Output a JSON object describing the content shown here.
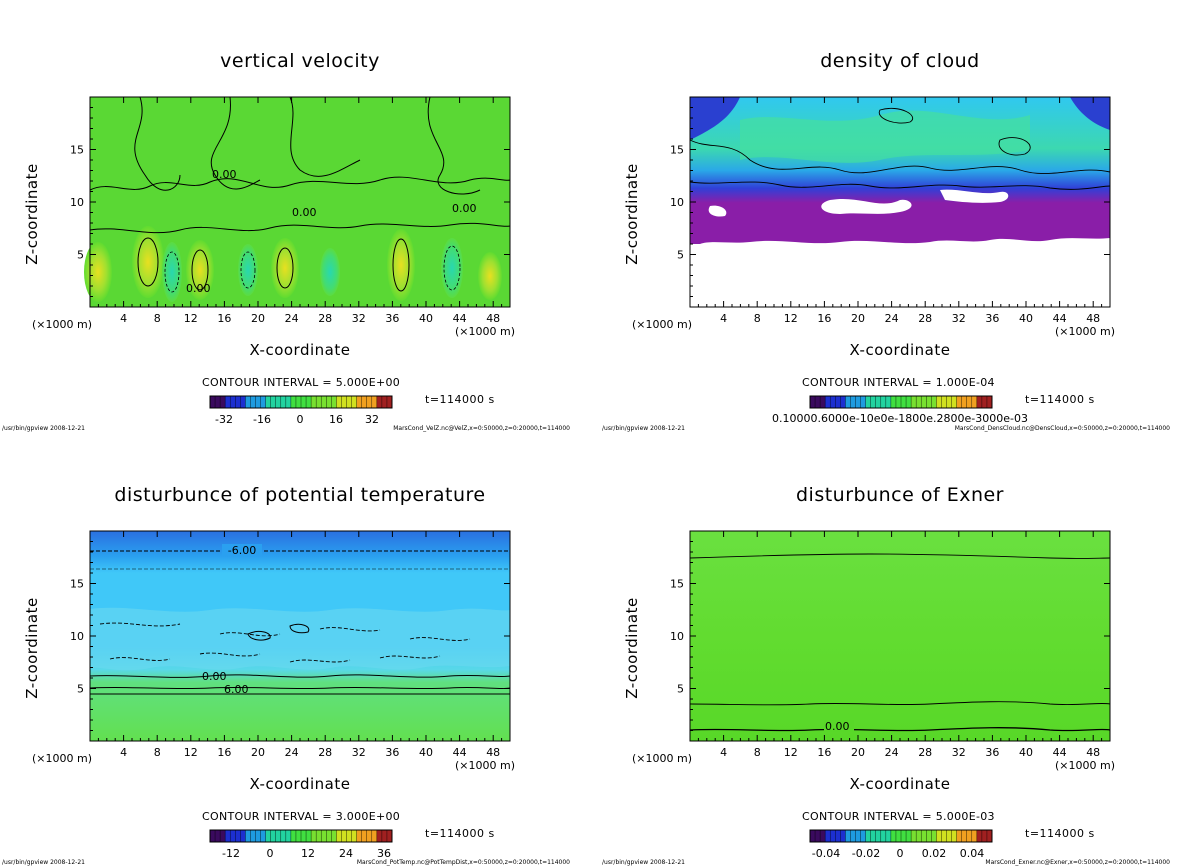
{
  "shared": {
    "ylabel": "Z-coordinate",
    "xlabel": "X-coordinate",
    "x_unit_left": "(×1000 m)",
    "x_unit_right": "(×1000 m)",
    "time": "t=114000 s",
    "path": "/usr/bin/gpview  2008-12-21"
  },
  "chart_data": [
    {
      "type": "heatmap",
      "title": "vertical velocity",
      "xlabel": "X-coordinate",
      "ylabel": "Z-coordinate",
      "xlim": [
        0,
        50
      ],
      "ylim": [
        0,
        20
      ],
      "x_ticks": [
        4,
        8,
        12,
        16,
        20,
        24,
        28,
        32,
        36,
        40,
        44,
        48
      ],
      "y_ticks": [
        5,
        10,
        15
      ],
      "contour_interval": "CONTOUR INTERVAL = 5.000E+00",
      "colorbar_ticks": [
        "-32",
        "-16",
        "0",
        "16",
        "32"
      ],
      "contour_labels": [
        "0.00"
      ],
      "file": "MarsCond_VelZ.nc@VelZ,x=0:50000,z=0:20000,t=114000",
      "palette": [
        "#3a0a5e",
        "#1c2fd0",
        "#1e9be0",
        "#22d3a0",
        "#40e040",
        "#78e030",
        "#d0e020",
        "#f0a020",
        "#a02020"
      ]
    },
    {
      "type": "heatmap",
      "title": "density of cloud",
      "xlabel": "X-coordinate",
      "ylabel": "Z-coordinate",
      "xlim": [
        0,
        50
      ],
      "ylim": [
        0,
        20
      ],
      "x_ticks": [
        4,
        8,
        12,
        16,
        20,
        24,
        28,
        32,
        36,
        40,
        44,
        48
      ],
      "y_ticks": [
        5,
        10,
        15
      ],
      "contour_interval": "CONTOUR INTERVAL = 1.000E-04",
      "colorbar_label": "0.10000.6000e-10e0e-1800e.2800e-3000e-03",
      "file": "MarsCond_DensCloud.nc@DensCloud,x=0:50000,z=0:20000,t=114000",
      "palette": [
        "#3a0a5e",
        "#1c2fd0",
        "#1e9be0",
        "#22d3a0",
        "#40e040",
        "#78e030",
        "#d0e020",
        "#f0a020",
        "#a02020"
      ]
    },
    {
      "type": "heatmap",
      "title": "disturbunce of potential temperature",
      "xlabel": "X-coordinate",
      "ylabel": "Z-coordinate",
      "xlim": [
        0,
        50
      ],
      "ylim": [
        0,
        20
      ],
      "x_ticks": [
        4,
        8,
        12,
        16,
        20,
        24,
        28,
        32,
        36,
        40,
        44,
        48
      ],
      "y_ticks": [
        5,
        10,
        15
      ],
      "contour_interval": "CONTOUR INTERVAL = 3.000E+00",
      "colorbar_ticks": [
        "-12",
        "0",
        "12",
        "24",
        "36"
      ],
      "contour_labels": [
        "-6.00",
        "0.00",
        "6.00"
      ],
      "file": "MarsCond_PotTemp.nc@PotTempDist,x=0:50000,z=0:20000,t=114000",
      "palette": [
        "#3a0a5e",
        "#1c2fd0",
        "#1e9be0",
        "#22d3a0",
        "#40e040",
        "#78e030",
        "#d0e020",
        "#f0a020",
        "#a02020"
      ]
    },
    {
      "type": "heatmap",
      "title": "disturbunce of Exner",
      "xlabel": "X-coordinate",
      "ylabel": "Z-coordinate",
      "xlim": [
        0,
        50
      ],
      "ylim": [
        0,
        20
      ],
      "x_ticks": [
        4,
        8,
        12,
        16,
        20,
        24,
        28,
        32,
        36,
        40,
        44,
        48
      ],
      "y_ticks": [
        5,
        10,
        15
      ],
      "contour_interval": "CONTOUR INTERVAL = 5.000E-03",
      "colorbar_ticks": [
        "-0.04",
        "-0.02",
        "0",
        "0.02",
        "0.04"
      ],
      "contour_labels": [
        "0.00"
      ],
      "file": "MarsCond_Exner.nc@Exner,x=0:50000,z=0:20000,t=114000",
      "palette": [
        "#3a0a5e",
        "#1c2fd0",
        "#1e9be0",
        "#22d3a0",
        "#40e040",
        "#78e030",
        "#d0e020",
        "#f0a020",
        "#a02020"
      ]
    }
  ]
}
